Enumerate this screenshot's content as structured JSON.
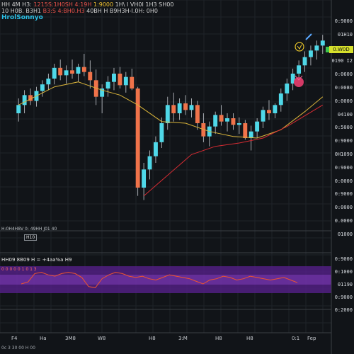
{
  "header": {
    "line1_a": "HH 4M H3:",
    "line1_red": "1215S:1H0SH 4:19H",
    "line1_yel": "1:9000",
    "line1_b": "1H\\ I VH0I 1H3 SH00",
    "line2_a": "10 H0B. B3H1",
    "line2_red": "B3:S 4:BH0.H3",
    "line2_b": "40BH H B9H3H-I.0H: 0H0",
    "symbol": "HrolSonnyo"
  },
  "price_axis": {
    "labels": [
      "0:9000",
      "01H10",
      "0.V0H",
      "0190 I2",
      "0:0600",
      "0:0080",
      "0:0000",
      "04100",
      "0:5000",
      "0:9000",
      "0H1090",
      "0:9000",
      "0:0000",
      "0:9000",
      "0:0000",
      "0.0000",
      "01000"
    ],
    "current_price": "0.W0D"
  },
  "indicator_legend": {
    "text": "H:0H4H8V 0: 49HH J01 40",
    "box": "H10"
  },
  "oscillator": {
    "title": "HH09 8B09 H = +4aa%a H9",
    "tag": "0 0 0 0 0 1 0 1 3",
    "axis": [
      "0:9000",
      "0:1000",
      "01190",
      "0:9000",
      "0:2000"
    ]
  },
  "x_axis": [
    "F4",
    "Ha",
    "3M8",
    "W8",
    "H8",
    "3:M",
    "H8",
    "H8",
    "0:1",
    "Fep"
  ],
  "footer": "0c  3 30 00    H 00",
  "colors": {
    "up": "#4fd8e8",
    "down": "#f0734a",
    "ma_yellow": "#d9b43a",
    "ma_red": "#d62c33",
    "osc_band": "#6a2aa0",
    "osc_line": "#f0542e",
    "background": "#111418"
  },
  "chart_data": {
    "type": "candlestick",
    "candles": [
      {
        "o": 140,
        "h": 158,
        "l": 130,
        "c": 150
      },
      {
        "o": 150,
        "h": 168,
        "l": 140,
        "c": 162
      },
      {
        "o": 162,
        "h": 170,
        "l": 150,
        "c": 155
      },
      {
        "o": 155,
        "h": 172,
        "l": 148,
        "c": 167
      },
      {
        "o": 167,
        "h": 180,
        "l": 160,
        "c": 175
      },
      {
        "o": 175,
        "h": 188,
        "l": 168,
        "c": 182
      },
      {
        "o": 182,
        "h": 200,
        "l": 175,
        "c": 195
      },
      {
        "o": 195,
        "h": 205,
        "l": 180,
        "c": 186
      },
      {
        "o": 186,
        "h": 198,
        "l": 176,
        "c": 192
      },
      {
        "o": 192,
        "h": 205,
        "l": 182,
        "c": 188
      },
      {
        "o": 188,
        "h": 200,
        "l": 178,
        "c": 196
      },
      {
        "o": 196,
        "h": 212,
        "l": 185,
        "c": 190
      },
      {
        "o": 190,
        "h": 204,
        "l": 170,
        "c": 180
      },
      {
        "o": 180,
        "h": 193,
        "l": 150,
        "c": 160
      },
      {
        "o": 160,
        "h": 175,
        "l": 140,
        "c": 170
      },
      {
        "o": 170,
        "h": 185,
        "l": 160,
        "c": 178
      },
      {
        "o": 178,
        "h": 195,
        "l": 168,
        "c": 188
      },
      {
        "o": 188,
        "h": 196,
        "l": 170,
        "c": 174
      },
      {
        "o": 174,
        "h": 190,
        "l": 165,
        "c": 184
      },
      {
        "o": 184,
        "h": 194,
        "l": 168,
        "c": 170
      },
      {
        "o": 170,
        "h": 172,
        "l": 40,
        "c": 50
      },
      {
        "o": 50,
        "h": 80,
        "l": 35,
        "c": 72
      },
      {
        "o": 72,
        "h": 95,
        "l": 60,
        "c": 88
      },
      {
        "o": 88,
        "h": 112,
        "l": 80,
        "c": 105
      },
      {
        "o": 105,
        "h": 135,
        "l": 98,
        "c": 128
      },
      {
        "o": 128,
        "h": 160,
        "l": 120,
        "c": 150
      },
      {
        "o": 150,
        "h": 165,
        "l": 130,
        "c": 140
      },
      {
        "o": 140,
        "h": 158,
        "l": 132,
        "c": 152
      },
      {
        "o": 152,
        "h": 162,
        "l": 138,
        "c": 144
      },
      {
        "o": 144,
        "h": 158,
        "l": 135,
        "c": 150
      },
      {
        "o": 150,
        "h": 155,
        "l": 120,
        "c": 128
      },
      {
        "o": 128,
        "h": 140,
        "l": 105,
        "c": 112
      },
      {
        "o": 112,
        "h": 130,
        "l": 100,
        "c": 124
      },
      {
        "o": 124,
        "h": 142,
        "l": 115,
        "c": 138
      },
      {
        "o": 138,
        "h": 150,
        "l": 125,
        "c": 130
      },
      {
        "o": 130,
        "h": 140,
        "l": 118,
        "c": 134
      },
      {
        "o": 134,
        "h": 140,
        "l": 120,
        "c": 126
      },
      {
        "o": 126,
        "h": 135,
        "l": 115,
        "c": 128
      },
      {
        "o": 128,
        "h": 132,
        "l": 108,
        "c": 110
      },
      {
        "o": 110,
        "h": 125,
        "l": 95,
        "c": 118
      },
      {
        "o": 118,
        "h": 134,
        "l": 110,
        "c": 130
      },
      {
        "o": 130,
        "h": 148,
        "l": 122,
        "c": 144
      },
      {
        "o": 144,
        "h": 156,
        "l": 132,
        "c": 140
      },
      {
        "o": 140,
        "h": 152,
        "l": 134,
        "c": 150
      },
      {
        "o": 150,
        "h": 170,
        "l": 142,
        "c": 164
      },
      {
        "o": 164,
        "h": 182,
        "l": 155,
        "c": 176
      },
      {
        "o": 176,
        "h": 194,
        "l": 168,
        "c": 188
      },
      {
        "o": 188,
        "h": 204,
        "l": 180,
        "c": 198
      },
      {
        "o": 198,
        "h": 215,
        "l": 190,
        "c": 208
      },
      {
        "o": 208,
        "h": 222,
        "l": 198,
        "c": 216
      },
      {
        "o": 216,
        "h": 228,
        "l": 205,
        "c": 222
      },
      {
        "o": 222,
        "h": 235,
        "l": 212,
        "c": 228
      }
    ],
    "ma_yellow": [
      [
        0,
        150
      ],
      [
        6,
        172
      ],
      [
        10,
        178
      ],
      [
        14,
        168
      ],
      [
        17,
        162
      ],
      [
        20,
        150
      ],
      [
        24,
        130
      ],
      [
        28,
        128
      ],
      [
        32,
        118
      ],
      [
        36,
        112
      ],
      [
        40,
        110
      ],
      [
        44,
        120
      ],
      [
        48,
        142
      ],
      [
        51,
        160
      ]
    ],
    "ma_red": [
      [
        21,
        40
      ],
      [
        25,
        65
      ],
      [
        29,
        90
      ],
      [
        33,
        100
      ],
      [
        37,
        104
      ],
      [
        41,
        110
      ],
      [
        45,
        124
      ],
      [
        51,
        150
      ]
    ],
    "oscillator": [
      52,
      55,
      68,
      70,
      66,
      64,
      68,
      70,
      68,
      62,
      48,
      46,
      60,
      66,
      70,
      68,
      64,
      62,
      64,
      60,
      58,
      62,
      66,
      64,
      62,
      60,
      56,
      52,
      58,
      60,
      64,
      62,
      58,
      60,
      64,
      62,
      60,
      58,
      60,
      62,
      58,
      54
    ],
    "ylim": [
      20,
      260
    ]
  }
}
